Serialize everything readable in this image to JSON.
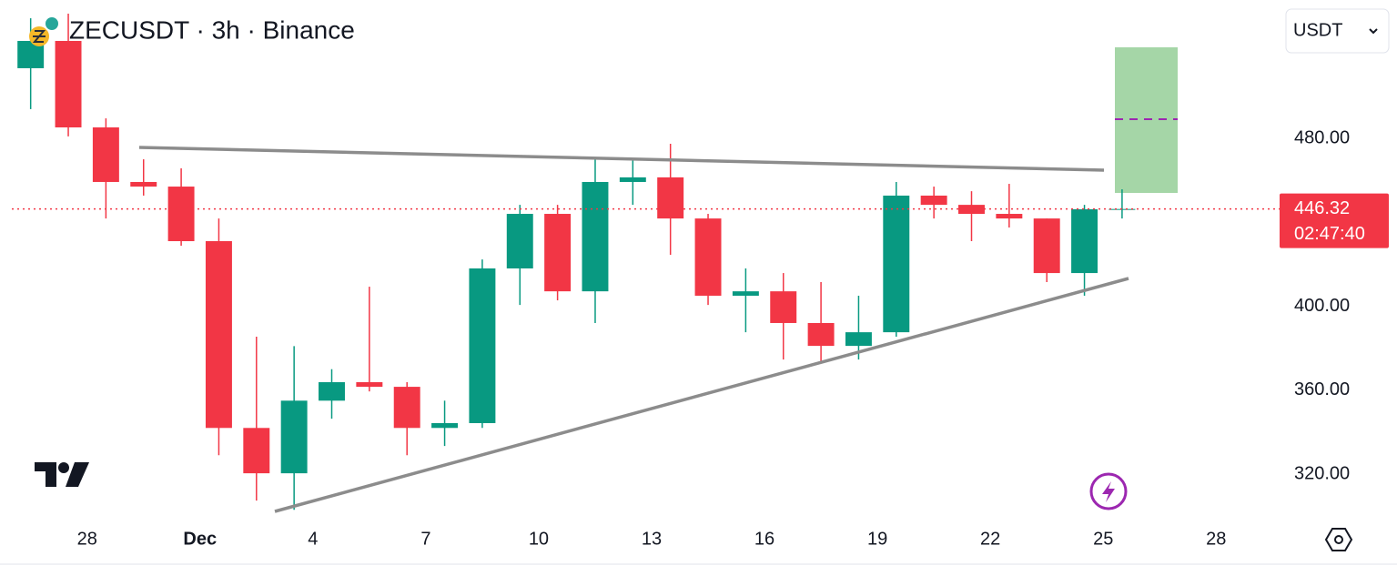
{
  "toolbar": {
    "currency": "USDT"
  },
  "chart_data": {
    "type": "candlestick",
    "title": "ZECUSDT · 3h · Binance",
    "up_color": "#089981",
    "down_color": "#f23645",
    "x": [
      "Nov 26",
      "Nov 27",
      "Nov 28",
      "Nov 29",
      "Nov 30",
      "Dec 1",
      "Dec 2",
      "Dec 3",
      "Dec 4",
      "Dec 5",
      "Dec 6",
      "Dec 7",
      "Dec 8",
      "Dec 9",
      "Dec 10",
      "Dec 11",
      "Dec 12",
      "Dec 13",
      "Dec 14",
      "Dec 15",
      "Dec 16",
      "Dec 17",
      "Dec 18",
      "Dec 19",
      "Dec 20",
      "Dec 21",
      "Dec 22",
      "Dec 23",
      "Dec 24",
      "Dec 25"
    ],
    "open": [
      513.4,
      526.4,
      485.2,
      459.2,
      457.0,
      431.0,
      342.0,
      320.4,
      355.0,
      363.8,
      361.6,
      342.0,
      344.3,
      418.0,
      444.0,
      407.1,
      459.2,
      461.4,
      441.8,
      405.0,
      407.1,
      392.0,
      381.1,
      387.6,
      452.7,
      448.3,
      444.0,
      441.8,
      415.8,
      446.2
    ],
    "high": [
      537.2,
      539.4,
      489.5,
      470.0,
      465.7,
      441.8,
      385.5,
      381.0,
      370.0,
      409.3,
      363.8,
      355.0,
      422.3,
      448.3,
      448.3,
      470.0,
      470.0,
      477.4,
      444.0,
      418.0,
      415.8,
      411.5,
      405.0,
      459.2,
      457.0,
      454.8,
      458.3,
      441.8,
      448.3,
      455.7
    ],
    "low": [
      493.9,
      480.9,
      441.8,
      452.7,
      428.8,
      329.0,
      307.4,
      303.0,
      346.4,
      359.4,
      329.0,
      333.4,
      342.0,
      400.6,
      402.8,
      392.0,
      448.3,
      424.5,
      400.6,
      387.6,
      374.6,
      373.3,
      374.6,
      385.5,
      441.8,
      431.0,
      437.5,
      411.5,
      405.0,
      441.8
    ],
    "close": [
      526.4,
      485.2,
      459.2,
      457.0,
      431.0,
      342.0,
      320.4,
      355.0,
      363.8,
      361.6,
      342.0,
      344.3,
      418.0,
      444.0,
      407.1,
      459.2,
      461.4,
      441.8,
      405.0,
      407.1,
      392.0,
      381.1,
      387.6,
      452.7,
      448.3,
      444.0,
      441.8,
      415.8,
      446.2,
      446.32
    ],
    "xlim": [
      "Nov 26",
      "Dec 30"
    ],
    "xticks": [
      {
        "value": "Nov 28",
        "label": "28"
      },
      {
        "value": "Dec 1",
        "label": "Dec"
      },
      {
        "value": "Dec 4",
        "label": "4"
      },
      {
        "value": "Dec 7",
        "label": "7"
      },
      {
        "value": "Dec 10",
        "label": "10"
      },
      {
        "value": "Dec 13",
        "label": "13"
      },
      {
        "value": "Dec 16",
        "label": "16"
      },
      {
        "value": "Dec 19",
        "label": "19"
      },
      {
        "value": "Dec 22",
        "label": "22"
      },
      {
        "value": "Dec 25",
        "label": "25"
      },
      {
        "value": "Dec 28",
        "label": "28"
      }
    ],
    "ylim": [
      296.6,
      545.9
    ],
    "yticks": [
      {
        "value": 320,
        "label": "320.00"
      },
      {
        "value": 360,
        "label": "360.00"
      },
      {
        "value": 400,
        "label": "400.00"
      },
      {
        "value": 480,
        "label": "480.00"
      }
    ],
    "last_price": 446.32,
    "countdown": "02:47:40",
    "price_line_color": "#f23645"
  }
}
